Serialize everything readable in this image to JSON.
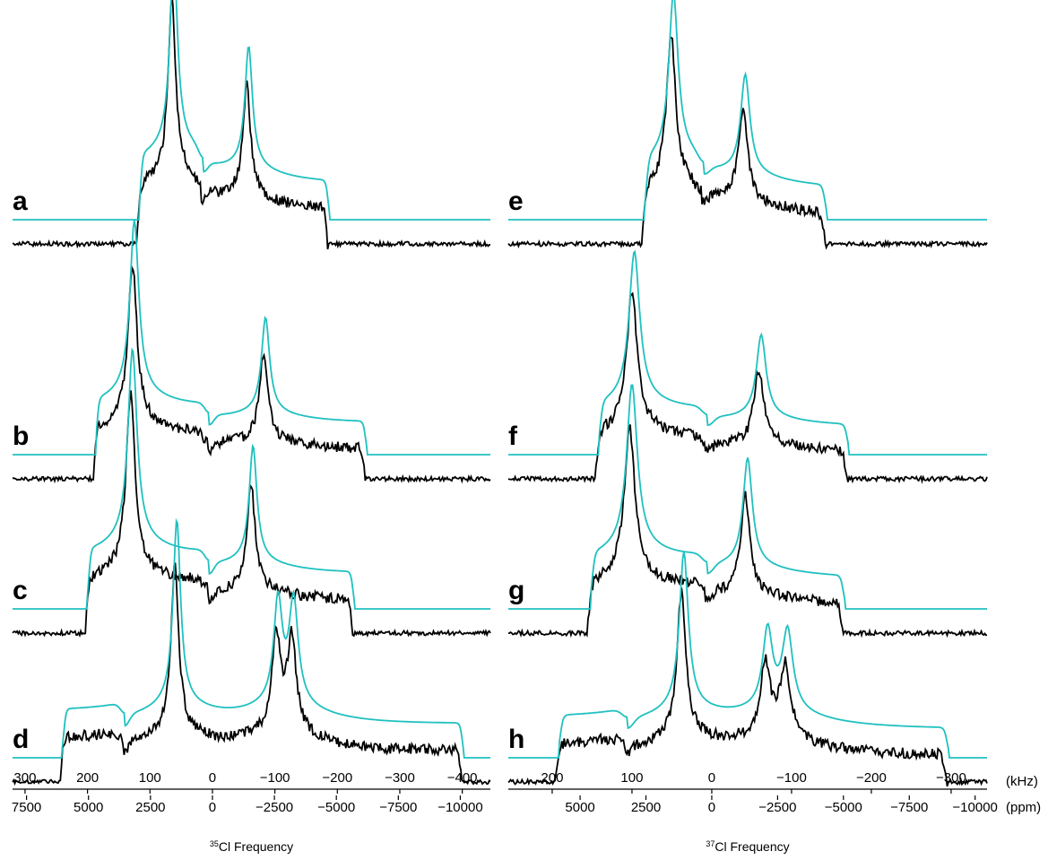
{
  "chart_data": [
    {
      "type": "line",
      "panel": "left",
      "xlabel": "35Cl Frequency",
      "xlabel_isotope": "35",
      "xlabel_text": "Cl Frequency",
      "khz_ticks": [
        "300",
        "200",
        "100",
        "0",
        "−100",
        "−200",
        "−300",
        "−400"
      ],
      "khz_tick_values": [
        300,
        200,
        100,
        0,
        -100,
        -200,
        -300,
        -400
      ],
      "ppm_ticks": [
        "7500",
        "5000",
        "2500",
        "0",
        "−2500",
        "−5000",
        "−7500",
        "−10000"
      ],
      "ppm_tick_values": [
        7500,
        5000,
        2500,
        0,
        -2500,
        -5000,
        -7500,
        -10000
      ],
      "xlim_khz": [
        320,
        -445
      ],
      "series_colors": {
        "experimental": "#000000",
        "simulated": "#20c0c0"
      },
      "spectra": [
        {
          "label": "a",
          "left_edge_khz": 115,
          "right_edge_khz": -185,
          "peaks": [
            {
              "khz": 62,
              "height": 1.0
            },
            {
              "khz": -58,
              "height": 0.62
            }
          ],
          "shoulder_khz": 15
        },
        {
          "label": "b",
          "left_edge_khz": 185,
          "right_edge_khz": -245,
          "peaks": [
            {
              "khz": 125,
              "height": 1.0
            },
            {
              "khz": -85,
              "height": 0.55
            }
          ],
          "shoulder_khz": 5
        },
        {
          "label": "c",
          "left_edge_khz": 198,
          "right_edge_khz": -225,
          "peaks": [
            {
              "khz": 128,
              "height": 1.0
            },
            {
              "khz": -65,
              "height": 0.6
            }
          ],
          "shoulder_khz": 5
        },
        {
          "label": "d",
          "left_edge_khz": 238,
          "right_edge_khz": -400,
          "peaks": [
            {
              "khz": 57,
              "height": 1.0
            },
            {
              "khz": -105,
              "height": 0.55
            },
            {
              "khz": -130,
              "height": 0.55
            }
          ],
          "shoulder_khz": 140
        }
      ]
    },
    {
      "type": "line",
      "panel": "right",
      "xlabel": "37Cl Frequency",
      "xlabel_isotope": "37",
      "xlabel_text": "Cl Frequency",
      "khz_ticks": [
        "200",
        "100",
        "0",
        "−100",
        "−200",
        "−300"
      ],
      "khz_tick_values": [
        200,
        100,
        0,
        -100,
        -200,
        -300
      ],
      "ppm_ticks": [
        "5000",
        "2500",
        "0",
        "−2500",
        "−5000",
        "−7500",
        "−10000"
      ],
      "ppm_tick_values": [
        5000,
        2500,
        0,
        -2500,
        -5000,
        -7500,
        -10000
      ],
      "xlim_khz": [
        255,
        -345
      ],
      "series_colors": {
        "experimental": "#000000",
        "simulated": "#20c0c0"
      },
      "spectra": [
        {
          "label": "e",
          "left_edge_khz": 82,
          "right_edge_khz": -142,
          "peaks": [
            {
              "khz": 48,
              "height": 1.0
            },
            {
              "khz": -42,
              "height": 0.6
            }
          ],
          "shoulder_khz": 10
        },
        {
          "label": "f",
          "left_edge_khz": 140,
          "right_edge_khz": -170,
          "peaks": [
            {
              "khz": 97,
              "height": 1.0
            },
            {
              "khz": -62,
              "height": 0.55
            }
          ],
          "shoulder_khz": 5
        },
        {
          "label": "g",
          "left_edge_khz": 150,
          "right_edge_khz": -165,
          "peaks": [
            {
              "khz": 100,
              "height": 1.0
            },
            {
              "khz": -45,
              "height": 0.65
            }
          ],
          "shoulder_khz": 5
        },
        {
          "label": "h",
          "left_edge_khz": 190,
          "right_edge_khz": -295,
          "peaks": [
            {
              "khz": 35,
              "height": 1.0
            },
            {
              "khz": -70,
              "height": 0.5
            },
            {
              "khz": -95,
              "height": 0.5
            }
          ],
          "shoulder_khz": 105
        }
      ]
    }
  ],
  "units": {
    "khz": "(kHz)",
    "ppm": "(ppm)"
  }
}
